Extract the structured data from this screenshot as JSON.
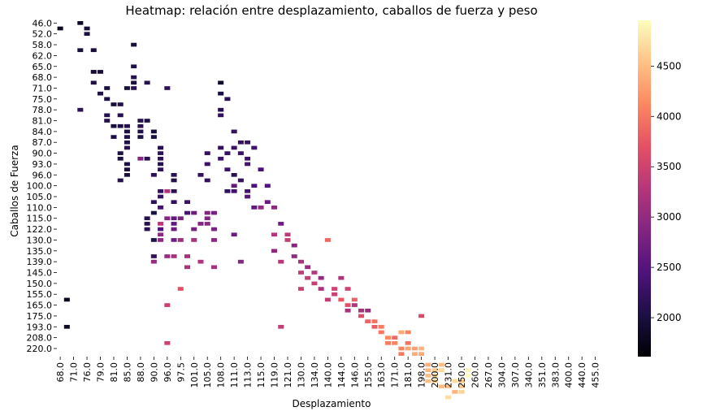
{
  "chart_data": {
    "type": "heatmap",
    "title": "Heatmap: relación entre desplazamiento, caballos de fuerza y peso",
    "xlabel": "Desplazamiento",
    "ylabel": "Caballos de Fuerza",
    "x_tick_labels": [
      "68.0",
      "71.0",
      "76.0",
      "79.0",
      "81.0",
      "85.0",
      "88.0",
      "90.0",
      "96.0",
      "97.5",
      "101.0",
      "105.0",
      "108.0",
      "111.0",
      "113.0",
      "115.0",
      "119.0",
      "121.0",
      "130.0",
      "134.0",
      "140.0",
      "144.0",
      "146.0",
      "155.0",
      "163.0",
      "171.0",
      "181.0",
      "198.0",
      "200.0",
      "231.0",
      "250.0",
      "260.0",
      "267.0",
      "304.0",
      "307.0",
      "340.0",
      "351.0",
      "383.0",
      "400.0",
      "440.0",
      "455.0"
    ],
    "y_tick_labels": [
      "46.0",
      "52.0",
      "58.0",
      "62.0",
      "65.0",
      "68.0",
      "71.0",
      "75.0",
      "78.0",
      "81.0",
      "84.0",
      "87.0",
      "90.0",
      "93.0",
      "96.0",
      "100.0",
      "105.0",
      "110.0",
      "115.0",
      "122.0",
      "130.0",
      "135.0",
      "139.0",
      "145.0",
      "150.0",
      "155.0",
      "165.0",
      "175.0",
      "193.0",
      "208.0",
      "220.0"
    ],
    "n_cols": 82,
    "n_rows": 62,
    "colorbar": {
      "min": 1613,
      "max": 4955,
      "ticks": [
        2000,
        2500,
        3000,
        3500,
        4000,
        4500
      ],
      "colormap": "magma"
    },
    "cells": [
      [
        0,
        1,
        1800
      ],
      [
        1,
        56,
        1835
      ],
      [
        1,
        74,
        1773
      ],
      [
        1,
        51,
        1760
      ],
      [
        3,
        5,
        1985
      ],
      [
        3,
        16,
        2164
      ],
      [
        3,
        0,
        1835
      ],
      [
        4,
        1,
        1985
      ],
      [
        4,
        2,
        1995
      ],
      [
        5,
        9,
        1910
      ],
      [
        5,
        11,
        2050
      ],
      [
        5,
        5,
        1950
      ],
      [
        6,
        13,
        2080
      ],
      [
        6,
        9,
        1955
      ],
      [
        7,
        12,
        1990
      ],
      [
        7,
        14,
        2040
      ],
      [
        7,
        18,
        2100
      ],
      [
        7,
        17,
        2090
      ],
      [
        8,
        15,
        1985
      ],
      [
        8,
        19,
        2000
      ],
      [
        8,
        21,
        2045
      ],
      [
        9,
        19,
        2050
      ],
      [
        9,
        17,
        2120
      ],
      [
        9,
        15,
        2070
      ],
      [
        9,
        24,
        2050
      ],
      [
        9,
        25,
        2040
      ],
      [
        9,
        29,
        2100
      ],
      [
        10,
        22,
        2070
      ],
      [
        10,
        12,
        2000
      ],
      [
        10,
        19,
        2090
      ],
      [
        10,
        20,
        2050
      ],
      [
        10,
        21,
        2100
      ],
      [
        10,
        23,
        2130
      ],
      [
        10,
        26,
        2050
      ],
      [
        10,
        27,
        2000
      ],
      [
        10,
        28,
        2000
      ],
      [
        11,
        4,
        1980
      ],
      [
        11,
        8,
        2050
      ],
      [
        11,
        10,
        2100
      ],
      [
        11,
        11,
        2010
      ],
      [
        11,
        12,
        2140
      ],
      [
        12,
        18,
        2100
      ],
      [
        12,
        19,
        2145
      ],
      [
        12,
        20,
        2080
      ],
      [
        12,
        25,
        2900
      ],
      [
        12,
        21,
        2065
      ],
      [
        13,
        18,
        2040
      ],
      [
        13,
        11,
        2100
      ],
      [
        13,
        25,
        2120
      ],
      [
        13,
        36,
        2100
      ],
      [
        13,
        37,
        2110
      ],
      [
        13,
        38,
        2130
      ],
      [
        14,
        21,
        1990
      ],
      [
        14,
        28,
        2150
      ],
      [
        14,
        33,
        2160
      ],
      [
        14,
        40,
        2050
      ],
      [
        14,
        44,
        3010
      ],
      [
        14,
        43,
        2200
      ],
      [
        14,
        35,
        2000
      ],
      [
        14,
        20,
        1970
      ],
      [
        15,
        23,
        2100
      ],
      [
        15,
        24,
        2145
      ],
      [
        15,
        25,
        2160
      ],
      [
        15,
        26,
        2095
      ],
      [
        15,
        27,
        2190
      ],
      [
        15,
        31,
        2210
      ],
      [
        15,
        32,
        2230
      ],
      [
        15,
        34,
        2340
      ],
      [
        15,
        37,
        3300
      ],
      [
        15,
        38,
        2450
      ],
      [
        15,
        40,
        2960
      ],
      [
        15,
        39,
        2950
      ],
      [
        16,
        12,
        2150
      ],
      [
        16,
        31,
        3260
      ],
      [
        16,
        36,
        2900
      ],
      [
        16,
        43,
        3040
      ],
      [
        16,
        52,
        3450
      ],
      [
        16,
        59,
        3500
      ],
      [
        17,
        36,
        2600
      ],
      [
        17,
        40,
        2720
      ],
      [
        17,
        29,
        2080
      ],
      [
        17,
        28,
        2140
      ],
      [
        17,
        31,
        2150
      ],
      [
        17,
        33,
        2200
      ],
      [
        17,
        37,
        2600
      ],
      [
        17,
        38,
        2700
      ],
      [
        17,
        43,
        3165
      ],
      [
        18,
        36,
        2800
      ],
      [
        18,
        40,
        3100
      ],
      [
        18,
        49,
        3700
      ],
      [
        19,
        33,
        2300
      ],
      [
        19,
        35,
        2400
      ],
      [
        19,
        43,
        3160
      ],
      [
        19,
        45,
        3200
      ],
      [
        20,
        35,
        2700
      ],
      [
        20,
        38,
        2800
      ],
      [
        20,
        40,
        3180
      ],
      [
        21,
        28,
        2200
      ],
      [
        21,
        37,
        2850
      ],
      [
        21,
        44,
        3235
      ],
      [
        22,
        24,
        2230
      ],
      [
        22,
        26,
        2300
      ],
      [
        22,
        29,
        2200
      ],
      [
        22,
        35,
        2900
      ],
      [
        22,
        36,
        2870
      ],
      [
        22,
        37,
        2940
      ],
      [
        23,
        35,
        2750
      ],
      [
        23,
        38,
        2800
      ],
      [
        23,
        40,
        2950
      ],
      [
        23,
        45,
        3150
      ],
      [
        24,
        11,
        1870
      ],
      [
        24,
        13,
        2010
      ],
      [
        24,
        23,
        2210
      ],
      [
        24,
        25,
        2310
      ],
      [
        24,
        17,
        2200
      ],
      [
        24,
        16,
        2120
      ],
      [
        25,
        14,
        2130
      ],
      [
        25,
        24,
        2220
      ],
      [
        25,
        27,
        2300
      ],
      [
        25,
        31,
        2210
      ],
      [
        26,
        20,
        2220
      ],
      [
        26,
        23,
        2290
      ],
      [
        26,
        28,
        2150
      ],
      [
        26,
        31,
        2350
      ],
      [
        26,
        30,
        2600
      ],
      [
        26,
        39,
        2700
      ],
      [
        27,
        22,
        2230
      ],
      [
        27,
        24,
        2280
      ],
      [
        27,
        29,
        2260
      ],
      [
        27,
        44,
        2900
      ],
      [
        28,
        22,
        2270
      ],
      [
        28,
        25,
        2320
      ],
      [
        28,
        26,
        2360
      ],
      [
        28,
        31,
        2400
      ],
      [
        28,
        32,
        2530
      ],
      [
        29,
        23,
        2340
      ],
      [
        29,
        30,
        2430
      ],
      [
        29,
        34,
        2600
      ],
      [
        30,
        27,
        2400
      ],
      [
        30,
        34,
        3000
      ],
      [
        31,
        30,
        2490
      ],
      [
        31,
        33,
        2650
      ],
      [
        32,
        34,
        2950
      ],
      [
        32,
        39,
        3280
      ],
      [
        32,
        42,
        2970
      ],
      [
        33,
        37,
        2700
      ],
      [
        33,
        44,
        3300
      ],
      [
        33,
        56,
        3400
      ],
      [
        34,
        39,
        3350
      ],
      [
        34,
        40,
        3410
      ],
      [
        35,
        41,
        2910
      ],
      [
        35,
        43,
        2995
      ],
      [
        36,
        44,
        3200
      ],
      [
        36,
        46,
        3400
      ],
      [
        36,
        49,
        3460
      ],
      [
        37,
        45,
        3050
      ],
      [
        37,
        47,
        3450
      ],
      [
        38,
        46,
        3300
      ],
      [
        38,
        48,
        3430
      ],
      [
        39,
        49,
        3200
      ],
      [
        39,
        47,
        3020
      ],
      [
        40,
        40,
        3880
      ],
      [
        40,
        51,
        3400
      ],
      [
        41,
        49,
        3500
      ],
      [
        41,
        50,
        3470
      ],
      [
        42,
        47,
        3220
      ],
      [
        42,
        51,
        3760
      ],
      [
        43,
        49,
        3500
      ],
      [
        43,
        52,
        3650
      ],
      [
        43,
        53,
        3190
      ],
      [
        44,
        51,
        3820
      ],
      [
        44,
        52,
        3250
      ],
      [
        45,
        53,
        3150
      ],
      [
        45,
        54,
        3620
      ],
      [
        46,
        53,
        3060
      ],
      [
        46,
        55,
        3840
      ],
      [
        47,
        55,
        3950
      ],
      [
        47,
        56,
        3800
      ],
      [
        48,
        56,
        4040
      ],
      [
        48,
        57,
        4000
      ],
      [
        49,
        58,
        4140
      ],
      [
        49,
        59,
        4050
      ],
      [
        50,
        58,
        3900
      ],
      [
        50,
        59,
        4100
      ],
      [
        51,
        57,
        4360
      ],
      [
        51,
        60,
        4100
      ],
      [
        51,
        61,
        4040
      ],
      [
        52,
        57,
        4100
      ],
      [
        52,
        59,
        3960
      ],
      [
        52,
        60,
        4320
      ],
      [
        53,
        60,
        4300
      ],
      [
        53,
        61,
        4400
      ],
      [
        54,
        54,
        3600
      ],
      [
        54,
        60,
        4450
      ],
      [
        54,
        61,
        4380
      ],
      [
        55,
        63,
        4400
      ],
      [
        55,
        64,
        4450
      ],
      [
        55,
        65,
        4500
      ],
      [
        55,
        66,
        4500
      ],
      [
        56,
        64,
        4600
      ],
      [
        56,
        65,
        4710
      ],
      [
        56,
        66,
        4650
      ],
      [
        57,
        63,
        4500
      ],
      [
        57,
        64,
        4700
      ],
      [
        57,
        67,
        4490
      ],
      [
        58,
        67,
        4500
      ],
      [
        58,
        69,
        4730
      ],
      [
        59,
        66,
        4720
      ],
      [
        59,
        68,
        4440
      ],
      [
        60,
        66,
        4610
      ],
      [
        60,
        67,
        4600
      ],
      [
        60,
        68,
        4660
      ],
      [
        61,
        64,
        4900
      ],
      [
        61,
        65,
        4950
      ]
    ]
  }
}
